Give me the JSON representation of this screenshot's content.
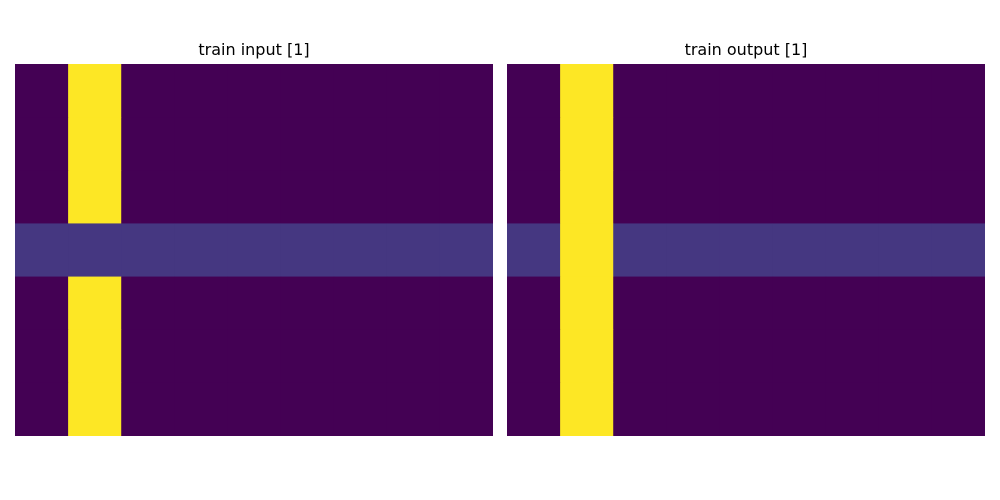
{
  "colors": {
    "background": "#440154",
    "band": "#453781",
    "stripe": "#fde725"
  },
  "chart_data": [
    {
      "type": "heatmap",
      "title": "train input [1]",
      "colormap": "viridis",
      "rows": 7,
      "cols": 9,
      "cells": [
        [
          0,
          2,
          0,
          0,
          0,
          0,
          0,
          0,
          0
        ],
        [
          0,
          2,
          0,
          0,
          0,
          0,
          0,
          0,
          0
        ],
        [
          0,
          2,
          0,
          0,
          0,
          0,
          0,
          0,
          0
        ],
        [
          1,
          1,
          1,
          1,
          1,
          1,
          1,
          1,
          1
        ],
        [
          0,
          2,
          0,
          0,
          0,
          0,
          0,
          0,
          0
        ],
        [
          0,
          2,
          0,
          0,
          0,
          0,
          0,
          0,
          0
        ],
        [
          0,
          2,
          0,
          0,
          0,
          0,
          0,
          0,
          0
        ]
      ],
      "axes_visible": false
    },
    {
      "type": "heatmap",
      "title": "train output [1]",
      "colormap": "viridis",
      "rows": 7,
      "cols": 9,
      "cells": [
        [
          0,
          2,
          0,
          0,
          0,
          0,
          0,
          0,
          0
        ],
        [
          0,
          2,
          0,
          0,
          0,
          0,
          0,
          0,
          0
        ],
        [
          0,
          2,
          0,
          0,
          0,
          0,
          0,
          0,
          0
        ],
        [
          1,
          2,
          1,
          1,
          1,
          1,
          1,
          1,
          1
        ],
        [
          0,
          2,
          0,
          0,
          0,
          0,
          0,
          0,
          0
        ],
        [
          0,
          2,
          0,
          0,
          0,
          0,
          0,
          0,
          0
        ],
        [
          0,
          2,
          0,
          0,
          0,
          0,
          0,
          0,
          0
        ]
      ],
      "axes_visible": false
    }
  ]
}
